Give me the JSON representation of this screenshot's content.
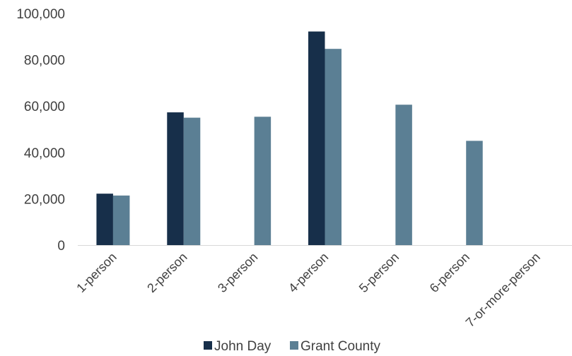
{
  "chart_data": {
    "type": "bar",
    "categories": [
      "1-person",
      "2-person",
      "3-person",
      "4-person",
      "5-person",
      "6-person",
      "7-or-more-person"
    ],
    "series": [
      {
        "name": "John Day",
        "color": "#172f4a",
        "values": [
          22200,
          57300,
          null,
          92200,
          null,
          null,
          null
        ]
      },
      {
        "name": "Grant County",
        "color": "#5b7f94",
        "values": [
          21400,
          55000,
          55400,
          84700,
          60600,
          45000,
          null
        ]
      }
    ],
    "ylim": [
      0,
      100000
    ],
    "yticks": [
      0,
      20000,
      40000,
      60000,
      80000,
      100000
    ],
    "ytick_labels": [
      "0",
      "20,000",
      "40,000",
      "60,000",
      "80,000",
      "100,000"
    ],
    "grid": false,
    "legend_position": "bottom"
  }
}
